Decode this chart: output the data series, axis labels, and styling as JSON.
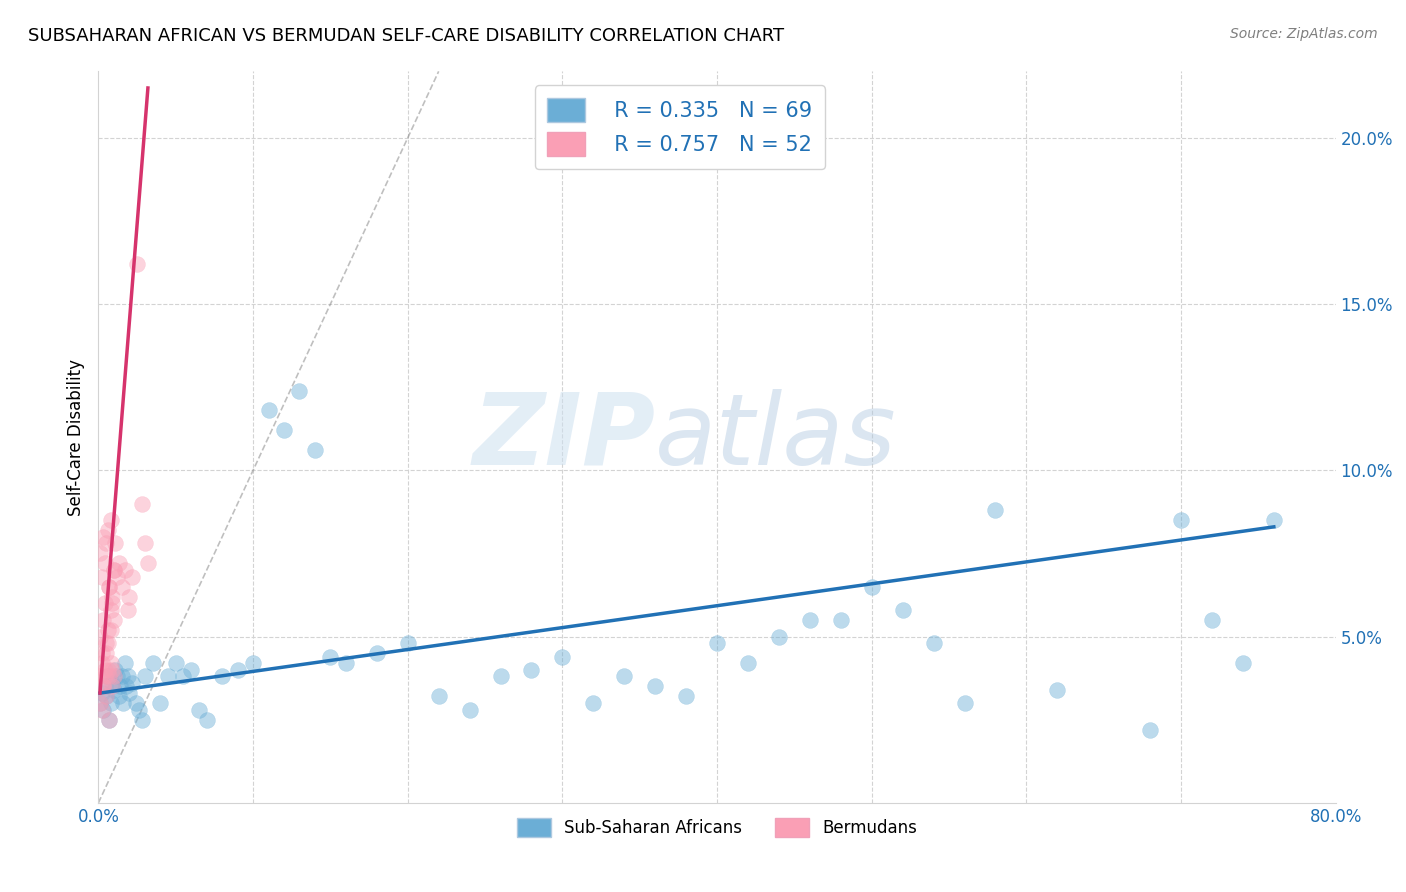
{
  "title": "SUBSAHARAN AFRICAN VS BERMUDAN SELF-CARE DISABILITY CORRELATION CHART",
  "source": "Source: ZipAtlas.com",
  "ylabel": "Self-Care Disability",
  "xlim": [
    0.0,
    0.8
  ],
  "ylim": [
    0.0,
    0.22
  ],
  "xticks": [
    0.0,
    0.8
  ],
  "xticklabels": [
    "0.0%",
    "80.0%"
  ],
  "yticks": [
    0.05,
    0.1,
    0.15,
    0.2
  ],
  "yticklabels": [
    "5.0%",
    "10.0%",
    "15.0%",
    "20.0%"
  ],
  "xgrid_ticks": [
    0.0,
    0.1,
    0.2,
    0.3,
    0.4,
    0.5,
    0.6,
    0.7,
    0.8
  ],
  "blue_color": "#6baed6",
  "pink_color": "#fa9fb5",
  "blue_line_color": "#2171b5",
  "pink_line_color": "#d6336c",
  "tick_color": "#2171b5",
  "blue_R": 0.335,
  "blue_N": 69,
  "pink_R": 0.757,
  "pink_N": 52,
  "legend_label_blue": "Sub-Saharan Africans",
  "legend_label_pink": "Bermudans",
  "watermark_zip": "ZIP",
  "watermark_atlas": "atlas",
  "blue_scatter_x": [
    0.001,
    0.002,
    0.003,
    0.004,
    0.005,
    0.006,
    0.007,
    0.008,
    0.009,
    0.01,
    0.011,
    0.012,
    0.013,
    0.014,
    0.015,
    0.016,
    0.017,
    0.018,
    0.019,
    0.02,
    0.022,
    0.024,
    0.026,
    0.028,
    0.03,
    0.035,
    0.04,
    0.045,
    0.05,
    0.055,
    0.06,
    0.065,
    0.07,
    0.08,
    0.09,
    0.1,
    0.11,
    0.12,
    0.13,
    0.14,
    0.15,
    0.16,
    0.18,
    0.2,
    0.22,
    0.24,
    0.26,
    0.28,
    0.3,
    0.32,
    0.34,
    0.36,
    0.38,
    0.4,
    0.42,
    0.44,
    0.46,
    0.48,
    0.5,
    0.52,
    0.54,
    0.56,
    0.58,
    0.62,
    0.68,
    0.7,
    0.72,
    0.74,
    0.76
  ],
  "blue_scatter_y": [
    0.03,
    0.033,
    0.028,
    0.035,
    0.032,
    0.038,
    0.025,
    0.03,
    0.036,
    0.034,
    0.04,
    0.038,
    0.032,
    0.035,
    0.038,
    0.03,
    0.042,
    0.035,
    0.038,
    0.033,
    0.036,
    0.03,
    0.028,
    0.025,
    0.038,
    0.042,
    0.03,
    0.038,
    0.042,
    0.038,
    0.04,
    0.028,
    0.025,
    0.038,
    0.04,
    0.042,
    0.118,
    0.112,
    0.124,
    0.106,
    0.044,
    0.042,
    0.045,
    0.048,
    0.032,
    0.028,
    0.038,
    0.04,
    0.044,
    0.03,
    0.038,
    0.035,
    0.032,
    0.048,
    0.042,
    0.05,
    0.055,
    0.055,
    0.065,
    0.058,
    0.048,
    0.03,
    0.088,
    0.034,
    0.022,
    0.085,
    0.055,
    0.042,
    0.085
  ],
  "pink_scatter_x": [
    0.001,
    0.002,
    0.003,
    0.004,
    0.005,
    0.006,
    0.007,
    0.008,
    0.009,
    0.01,
    0.001,
    0.002,
    0.003,
    0.004,
    0.005,
    0.006,
    0.007,
    0.008,
    0.009,
    0.01,
    0.001,
    0.002,
    0.003,
    0.004,
    0.005,
    0.006,
    0.007,
    0.008,
    0.009,
    0.01,
    0.001,
    0.002,
    0.003,
    0.004,
    0.005,
    0.006,
    0.007,
    0.008,
    0.009,
    0.01,
    0.011,
    0.012,
    0.013,
    0.015,
    0.017,
    0.019,
    0.02,
    0.022,
    0.025,
    0.028,
    0.03,
    0.032
  ],
  "pink_scatter_y": [
    0.03,
    0.028,
    0.035,
    0.038,
    0.032,
    0.04,
    0.025,
    0.042,
    0.035,
    0.038,
    0.05,
    0.045,
    0.055,
    0.06,
    0.048,
    0.052,
    0.065,
    0.058,
    0.062,
    0.07,
    0.038,
    0.042,
    0.035,
    0.04,
    0.045,
    0.048,
    0.038,
    0.052,
    0.04,
    0.055,
    0.075,
    0.068,
    0.08,
    0.072,
    0.078,
    0.082,
    0.065,
    0.085,
    0.06,
    0.07,
    0.078,
    0.068,
    0.072,
    0.065,
    0.07,
    0.058,
    0.062,
    0.068,
    0.162,
    0.09,
    0.078,
    0.072
  ],
  "blue_trend_x": [
    0.001,
    0.76
  ],
  "blue_trend_y": [
    0.033,
    0.083
  ],
  "pink_trend_x": [
    0.001,
    0.032
  ],
  "pink_trend_y": [
    0.033,
    0.215
  ],
  "diag_line_x": [
    0.0,
    0.22
  ],
  "diag_line_y": [
    0.0,
    0.22
  ]
}
